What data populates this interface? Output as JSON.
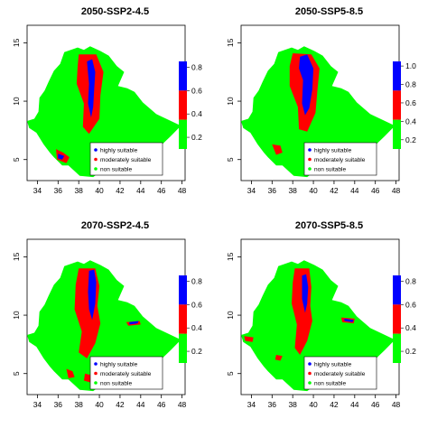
{
  "colors": {
    "high": "#0000ff",
    "moderate": "#ff0000",
    "non": "#00ff00",
    "frame": "#000000",
    "background": "#ffffff"
  },
  "axes": {
    "x_ticks": [
      "34",
      "36",
      "38",
      "40",
      "42",
      "44",
      "46",
      "48"
    ],
    "y_ticks": [
      "5",
      "10",
      "15"
    ]
  },
  "colorbar": {
    "labels": [
      "0.8",
      "0.6",
      "0.4",
      "0.2"
    ],
    "labels_scale1": [
      "1.0",
      "0.8",
      "0.6",
      "0.4",
      "0.2"
    ]
  },
  "legend": {
    "highly": "highly suitable",
    "moderately": "moderately suitable",
    "non": "non suitable"
  },
  "panels": [
    {
      "title": "2050-SSP2-4.5",
      "colorbar_max": "0.8",
      "cutoff": false
    },
    {
      "title": "2050-SSP5-8.5",
      "colorbar_max": "1.0",
      "cutoff": true
    },
    {
      "title": "2070-SSP2-4.5",
      "colorbar_max": "0.8",
      "cutoff": false
    },
    {
      "title": "2070-SSP5-8.5",
      "colorbar_max": "0.8",
      "cutoff": true
    }
  ]
}
